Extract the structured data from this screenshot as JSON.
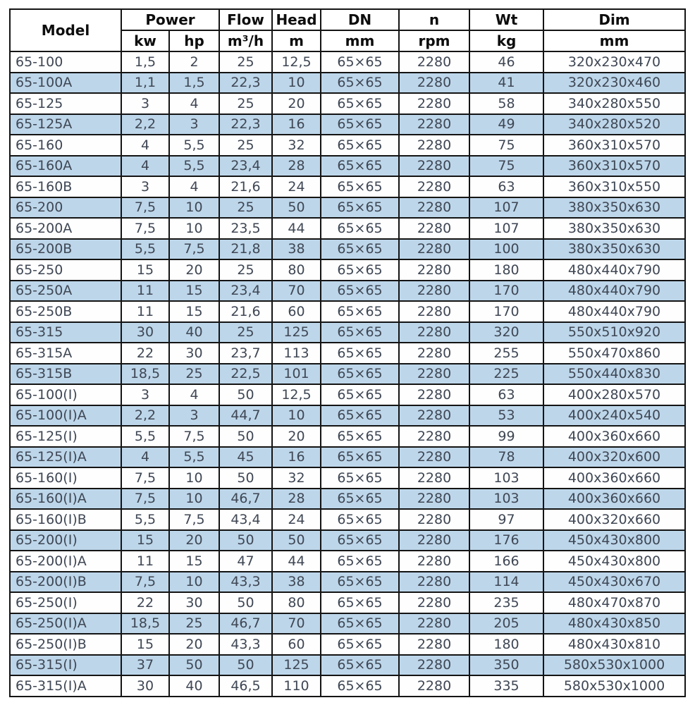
{
  "colors": {
    "row_alt": "#bdd6ea",
    "row_default": "#fefefe",
    "border": "#141414",
    "header_text": "#0d0d0d",
    "body_text": "#3f4754",
    "page_background": "#ffffff"
  },
  "chart_data": {
    "type": "table",
    "header": {
      "top": [
        "Model",
        "Power",
        "Flow",
        "Head",
        "DN",
        "n",
        "Wt",
        "Dim"
      ],
      "units": [
        "kw",
        "hp",
        "m³/h",
        "m",
        "mm",
        "rpm",
        "kg",
        "mm"
      ]
    },
    "rows": [
      [
        "65-100",
        "1,5",
        "2",
        "25",
        "12,5",
        "65×65",
        "2280",
        "46",
        "320x230x470"
      ],
      [
        "65-100A",
        "1,1",
        "1,5",
        "22,3",
        "10",
        "65×65",
        "2280",
        "41",
        "320x230x460"
      ],
      [
        "65-125",
        "3",
        "4",
        "25",
        "20",
        "65×65",
        "2280",
        "58",
        "340x280x550"
      ],
      [
        "65-125A",
        "2,2",
        "3",
        "22,3",
        "16",
        "65×65",
        "2280",
        "49",
        "340x280x520"
      ],
      [
        "65-160",
        "4",
        "5,5",
        "25",
        "32",
        "65×65",
        "2280",
        "75",
        "360x310x570"
      ],
      [
        "65-160A",
        "4",
        "5,5",
        "23,4",
        "28",
        "65×65",
        "2280",
        "75",
        "360x310x570"
      ],
      [
        "65-160B",
        "3",
        "4",
        "21,6",
        "24",
        "65×65",
        "2280",
        "63",
        "360x310x550"
      ],
      [
        "65-200",
        "7,5",
        "10",
        "25",
        "50",
        "65×65",
        "2280",
        "107",
        "380x350x630"
      ],
      [
        "65-200A",
        "7,5",
        "10",
        "23,5",
        "44",
        "65×65",
        "2280",
        "107",
        "380x350x630"
      ],
      [
        "65-200B",
        "5,5",
        "7,5",
        "21,8",
        "38",
        "65×65",
        "2280",
        "100",
        "380x350x630"
      ],
      [
        "65-250",
        "15",
        "20",
        "25",
        "80",
        "65×65",
        "2280",
        "180",
        "480x440x790"
      ],
      [
        "65-250A",
        "11",
        "15",
        "23,4",
        "70",
        "65×65",
        "2280",
        "170",
        "480x440x790"
      ],
      [
        "65-250B",
        "11",
        "15",
        "21,6",
        "60",
        "65×65",
        "2280",
        "170",
        "480x440x790"
      ],
      [
        "65-315",
        "30",
        "40",
        "25",
        "125",
        "65×65",
        "2280",
        "320",
        "550x510x920"
      ],
      [
        "65-315A",
        "22",
        "30",
        "23,7",
        "113",
        "65×65",
        "2280",
        "255",
        "550x470x860"
      ],
      [
        "65-315B",
        "18,5",
        "25",
        "22,5",
        "101",
        "65×65",
        "2280",
        "225",
        "550x440x830"
      ],
      [
        "65-100(I)",
        "3",
        "4",
        "50",
        "12,5",
        "65×65",
        "2280",
        "63",
        "400x280x570"
      ],
      [
        "65-100(I)A",
        "2,2",
        "3",
        "44,7",
        "10",
        "65×65",
        "2280",
        "53",
        "400x240x540"
      ],
      [
        "65-125(I)",
        "5,5",
        "7,5",
        "50",
        "20",
        "65×65",
        "2280",
        "99",
        "400x360x660"
      ],
      [
        "65-125(I)A",
        "4",
        "5,5",
        "45",
        "16",
        "65×65",
        "2280",
        "78",
        "400x320x600"
      ],
      [
        "65-160(I)",
        "7,5",
        "10",
        "50",
        "32",
        "65×65",
        "2280",
        "103",
        "400x360x660"
      ],
      [
        "65-160(I)A",
        "7,5",
        "10",
        "46,7",
        "28",
        "65×65",
        "2280",
        "103",
        "400x360x660"
      ],
      [
        "65-160(I)B",
        "5,5",
        "7,5",
        "43,4",
        "24",
        "65×65",
        "2280",
        "97",
        "400x320x660"
      ],
      [
        "65-200(I)",
        "15",
        "20",
        "50",
        "50",
        "65×65",
        "2280",
        "176",
        "450x430x800"
      ],
      [
        "65-200(I)A",
        "11",
        "15",
        "47",
        "44",
        "65×65",
        "2280",
        "166",
        "450x430x800"
      ],
      [
        "65-200(I)B",
        "7,5",
        "10",
        "43,3",
        "38",
        "65×65",
        "2280",
        "114",
        "450x430x670"
      ],
      [
        "65-250(I)",
        "22",
        "30",
        "50",
        "80",
        "65×65",
        "2280",
        "235",
        "480x470x870"
      ],
      [
        "65-250(I)A",
        "18,5",
        "25",
        "46,7",
        "70",
        "65×65",
        "2280",
        "205",
        "480x430x850"
      ],
      [
        "65-250(I)B",
        "15",
        "20",
        "43,3",
        "60",
        "65×65",
        "2280",
        "180",
        "480x430x810"
      ],
      [
        "65-315(I)",
        "37",
        "50",
        "50",
        "125",
        "65×65",
        "2280",
        "350",
        "580x530x1000"
      ],
      [
        "65-315(I)A",
        "30",
        "40",
        "46,5",
        "110",
        "65×65",
        "2280",
        "335",
        "580x530x1000"
      ]
    ]
  }
}
